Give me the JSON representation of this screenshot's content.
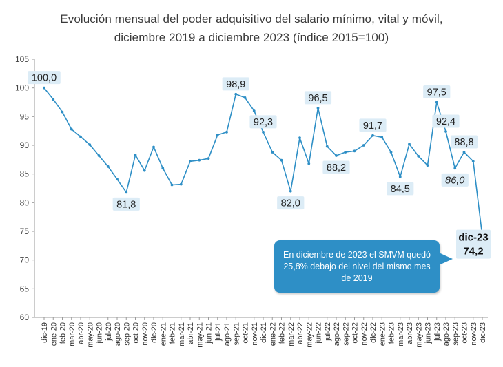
{
  "chart_data": {
    "type": "line",
    "title_line1": "Evolución mensual del poder adquisitivo del salario mínimo, vital y móvil,",
    "title_line2": "diciembre 2019 a diciembre 2023 (índice 2015=100)",
    "xlabel": "",
    "ylabel": "",
    "ylim": [
      60,
      105
    ],
    "yticks": [
      "60",
      "65",
      "70",
      "75",
      "80",
      "85",
      "90",
      "95",
      "100",
      "105"
    ],
    "grid": false,
    "color": "#2e8fc6",
    "categories": [
      "dic-19",
      "ene-20",
      "feb-20",
      "mar-20",
      "abr-20",
      "may-20",
      "jun-20",
      "jul-20",
      "ago-20",
      "sep-20",
      "oct-20",
      "nov-20",
      "dic-20",
      "ene-21",
      "feb-21",
      "mar-21",
      "abr-21",
      "may-21",
      "jun-21",
      "jul-21",
      "ago-21",
      "sep-21",
      "oct-21",
      "nov-21",
      "dic-21",
      "ene-22",
      "feb-22",
      "mar-22",
      "abr-22",
      "may-22",
      "jun-22",
      "jul-22",
      "ago-22",
      "sep-22",
      "oct-22",
      "nov-22",
      "dic-22",
      "ene-23",
      "feb-23",
      "mar-23",
      "abr-23",
      "may-23",
      "jun-23",
      "jul-23",
      "ago-23",
      "sep-23",
      "oct-23",
      "nov-23",
      "dic-23"
    ],
    "values": [
      100.0,
      98.0,
      95.8,
      92.8,
      91.5,
      90.1,
      88.2,
      86.3,
      84.1,
      81.8,
      88.3,
      85.6,
      89.7,
      86.0,
      83.1,
      83.2,
      87.2,
      87.4,
      87.7,
      91.8,
      92.3,
      98.9,
      98.3,
      96.0,
      92.3,
      88.8,
      87.4,
      82.0,
      91.3,
      86.8,
      96.5,
      89.8,
      88.2,
      88.8,
      89.0,
      90.0,
      91.7,
      91.4,
      88.8,
      84.5,
      90.2,
      88.1,
      86.5,
      97.5,
      92.4,
      86.0,
      88.8,
      87.2,
      74.2
    ],
    "data_labels": [
      {
        "index": 0,
        "text": "100,0",
        "pos": "above"
      },
      {
        "index": 9,
        "text": "81,8",
        "pos": "below"
      },
      {
        "index": 21,
        "text": "98,9",
        "pos": "above"
      },
      {
        "index": 24,
        "text": "92,3",
        "pos": "above"
      },
      {
        "index": 27,
        "text": "82,0",
        "pos": "below"
      },
      {
        "index": 30,
        "text": "96,5",
        "pos": "above"
      },
      {
        "index": 32,
        "text": "88,2",
        "pos": "below"
      },
      {
        "index": 36,
        "text": "91,7",
        "pos": "above"
      },
      {
        "index": 39,
        "text": "84,5",
        "pos": "below"
      },
      {
        "index": 43,
        "text": "97,5",
        "pos": "above"
      },
      {
        "index": 44,
        "text": "92,4",
        "pos": "above"
      },
      {
        "index": 45,
        "text": "86,0",
        "pos": "below",
        "italic": true
      },
      {
        "index": 46,
        "text": "88,8",
        "pos": "above"
      }
    ],
    "last_label": {
      "month": "dic-23",
      "value": "74,2"
    },
    "annotation": "En diciembre de 2023 el SMVM quedó 25,8% debajo del nivel del mismo mes de 2019"
  }
}
